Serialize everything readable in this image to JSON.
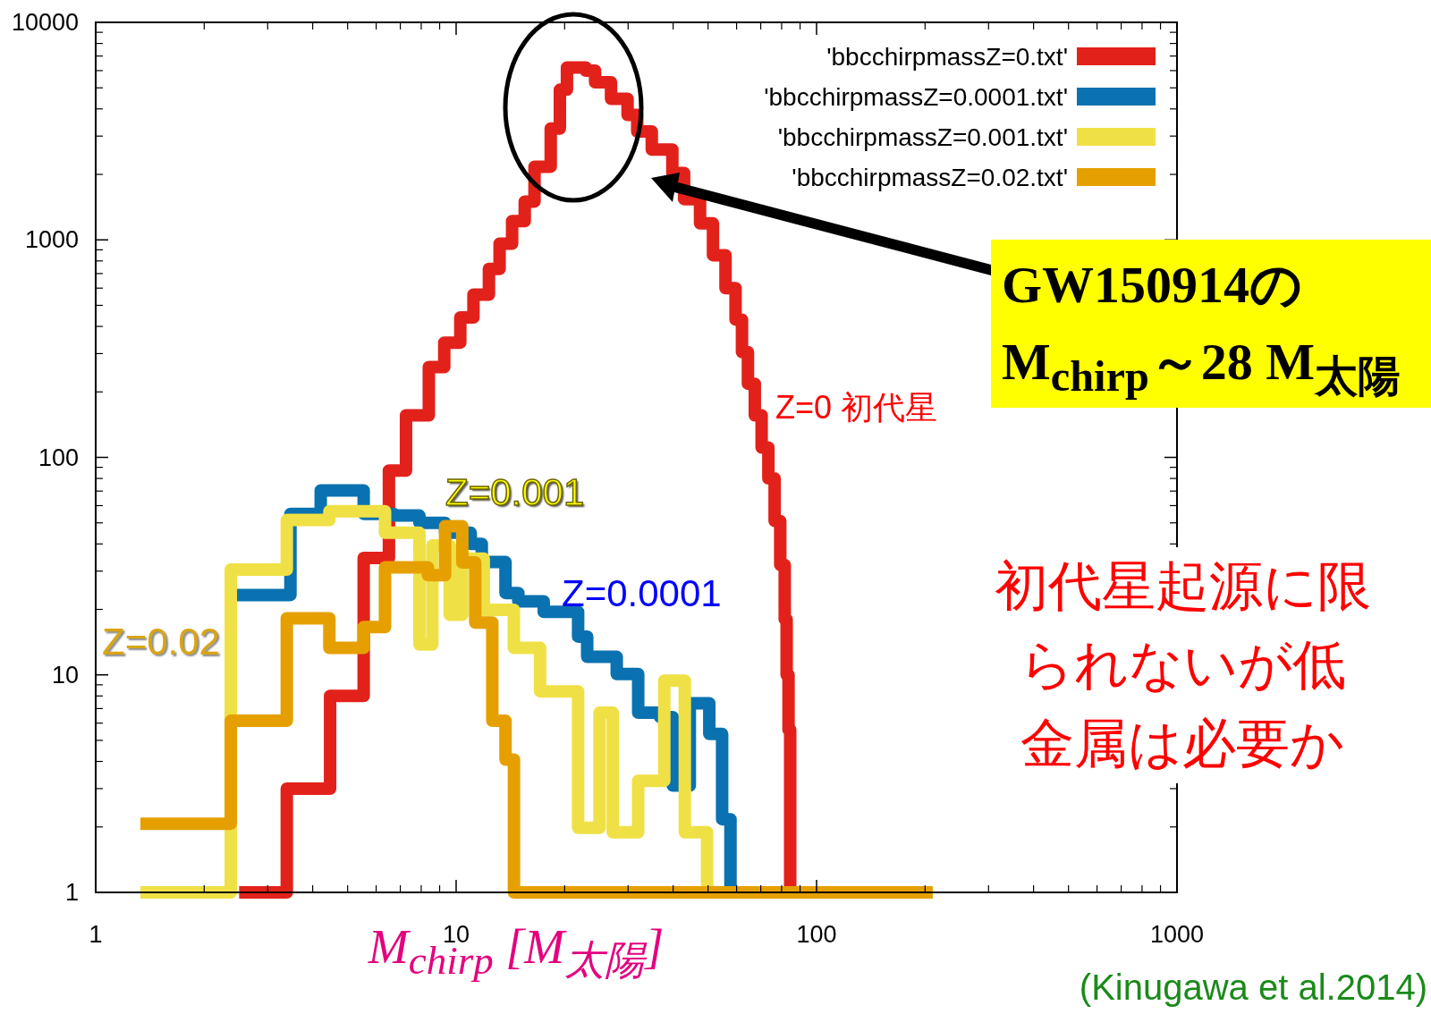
{
  "chart_data": {
    "type": "step",
    "xlabel": "M$_{chirp}$ [M$_{太陽}$]",
    "log": "xy",
    "xlim": [
      1,
      1000
    ],
    "ylim": [
      1,
      10000
    ],
    "xticks": [
      1,
      10,
      100,
      1000
    ],
    "yticks": [
      1,
      10,
      100,
      1000,
      10000
    ],
    "legend": "top right",
    "grid": false,
    "marker": "none",
    "series": [
      {
        "name": "'bbcchirpmassZ=0.txt'",
        "color": "#e3211b",
        "x": [
          2.5,
          3.39,
          4.47,
          5.54,
          6.51,
          7.26,
          8.4,
          9.27,
          10.27,
          11.17,
          12.33,
          13.2,
          14.3,
          15.5,
          16.5,
          18.3,
          19.4,
          20.3,
          22.9,
          24.3,
          26.9,
          29.9,
          31.8,
          34.9,
          39.8,
          42.9,
          47.5,
          51.6,
          55.9,
          59.6,
          62.1,
          64.5,
          67.4,
          70.4,
          73.5,
          76.5,
          79.3,
          81.6,
          82.6,
          83.6,
          84.5,
          210
        ],
        "values": [
          1,
          3,
          8,
          34.5,
          87,
          156,
          260,
          337,
          440,
          560,
          735,
          960,
          1220,
          1500,
          2170,
          3250,
          4900,
          6200,
          6000,
          5300,
          4450,
          3750,
          3150,
          2600,
          2030,
          1540,
          1190,
          850,
          600,
          430,
          305,
          218,
          156,
          111,
          80,
          51,
          32,
          18,
          10,
          5.6,
          1,
          1
        ]
      },
      {
        "name": "'bbcchirpmassZ=0.0001.txt'",
        "color": "#0a72b0",
        "x": [
          2.37,
          3.47,
          4.21,
          5.54,
          6.72,
          7.91,
          9.32,
          10.98,
          11.78,
          13.71,
          14.88,
          17.5,
          21.8,
          23.1,
          27.9,
          32.0,
          36.8,
          39.9,
          44.5,
          50.4,
          54.7,
          57.7
        ],
        "values": [
          23.3,
          55,
          70.5,
          55,
          54,
          50,
          45,
          40,
          33,
          23.8,
          21.8,
          19.5,
          15,
          12.1,
          10.1,
          6.7,
          6.4,
          3.1,
          7.4,
          5.35,
          2.17,
          1
        ]
      },
      {
        "name": "'bbcchirpmassZ=0.001.txt'",
        "color": "#efe145",
        "x": [
          1.33,
          2.37,
          3.39,
          4.45,
          6.35,
          7.91,
          8.59,
          9.6,
          10.4,
          11.93,
          14.46,
          17.1,
          21.8,
          25.0,
          27.2,
          32.0,
          37.8,
          43.1,
          49.7,
          210
        ],
        "values": [
          1,
          30.5,
          51.5,
          56.6,
          45,
          13.8,
          39.4,
          18.9,
          34.2,
          19.9,
          13.3,
          8.4,
          1.98,
          6.7,
          1.89,
          3.26,
          9.4,
          1.89,
          1,
          1
        ]
      },
      {
        "name": "'bbcchirpmassZ=0.02.txt'",
        "color": "#e5a000",
        "x": [
          1.33,
          2.37,
          3.39,
          4.45,
          5.54,
          6.35,
          8.35,
          9.32,
          10.4,
          11.3,
          12.6,
          13.71,
          14.47,
          210
        ],
        "values": [
          2.07,
          6.15,
          18.2,
          13.3,
          16.6,
          31.2,
          28.7,
          48.3,
          32.9,
          17.4,
          6.15,
          4.08,
          1,
          1
        ]
      }
    ],
    "annotations": [
      "GW150914のM$_{chirp}$～28 M$_{太陽}$",
      "Z=0 初代星",
      "Z=0.001",
      "Z=0.0001",
      "Z=0.02",
      "初代星起源に限られないが低金属は必要か",
      "(Kinugawa et al.2014)"
    ]
  }
}
